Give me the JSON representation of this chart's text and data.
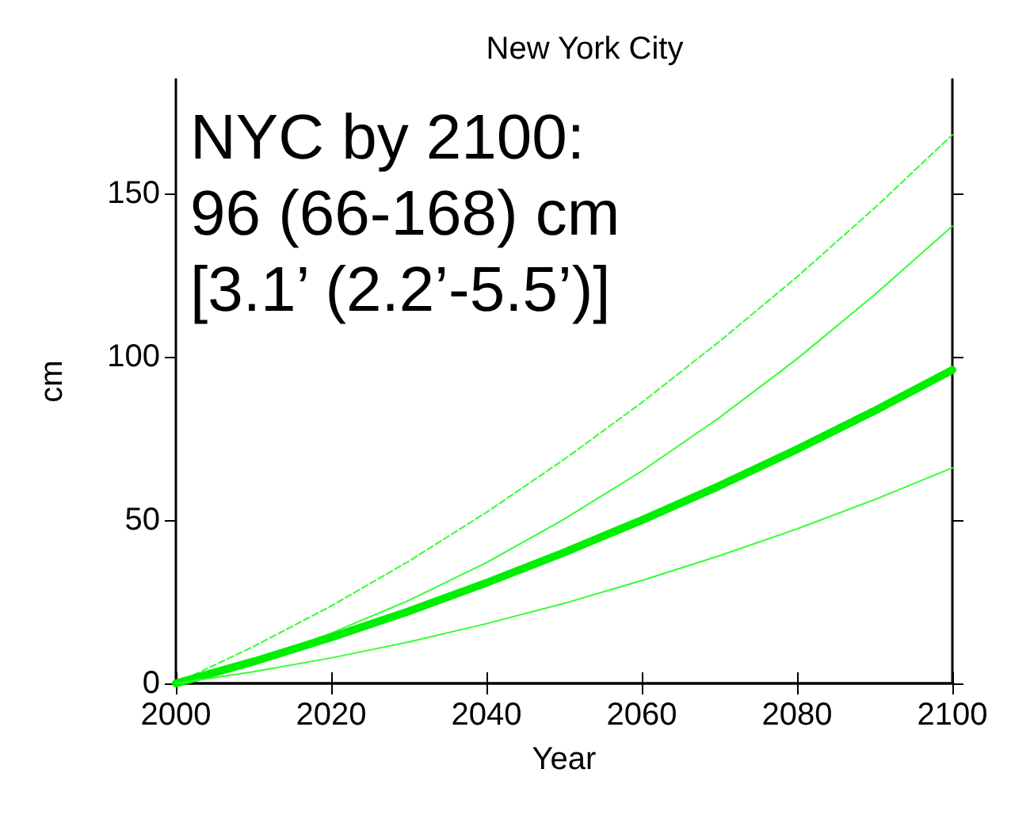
{
  "chart_data": {
    "type": "line",
    "title": "New York City",
    "xlabel": "Year",
    "ylabel": "cm",
    "x": [
      2000,
      2010,
      2020,
      2030,
      2040,
      2050,
      2060,
      2070,
      2080,
      2090,
      2100
    ],
    "series": [
      {
        "color": "#33ff33",
        "line_style": "dashed",
        "values": [
          0,
          11.3,
          23.7,
          37.4,
          52.4,
          68.6,
          86.0,
          104.7,
          124.5,
          145.6,
          168
        ]
      },
      {
        "color": "#33ff33",
        "line_style": "solid",
        "values": [
          0,
          6.9,
          15.4,
          25.4,
          37.0,
          50.3,
          65.0,
          81.4,
          99.4,
          119,
          140
        ]
      },
      {
        "color": "#00ee00",
        "line_style": "solid",
        "values": [
          0,
          6.7,
          14.1,
          22.1,
          30.8,
          40.1,
          50.0,
          60.5,
          71.7,
          83.5,
          96
        ]
      },
      {
        "color": "#33ff33",
        "line_style": "solid",
        "values": [
          0,
          3.6,
          7.8,
          12.7,
          18.3,
          24.5,
          31.5,
          39.1,
          47.3,
          56.3,
          66
        ]
      }
    ],
    "annotations": [
      "NYC by 2100:\n96 (66-168) cm\n[3.1’ (2.2’-5.5’)]"
    ],
    "xlim": [
      2000,
      2100
    ],
    "xticks": [
      2000,
      2020,
      2040,
      2060,
      2080,
      2100
    ],
    "ylim": [
      0,
      185
    ],
    "yticks": [
      0,
      50,
      100,
      150
    ],
    "grid": false,
    "marker": "none"
  }
}
